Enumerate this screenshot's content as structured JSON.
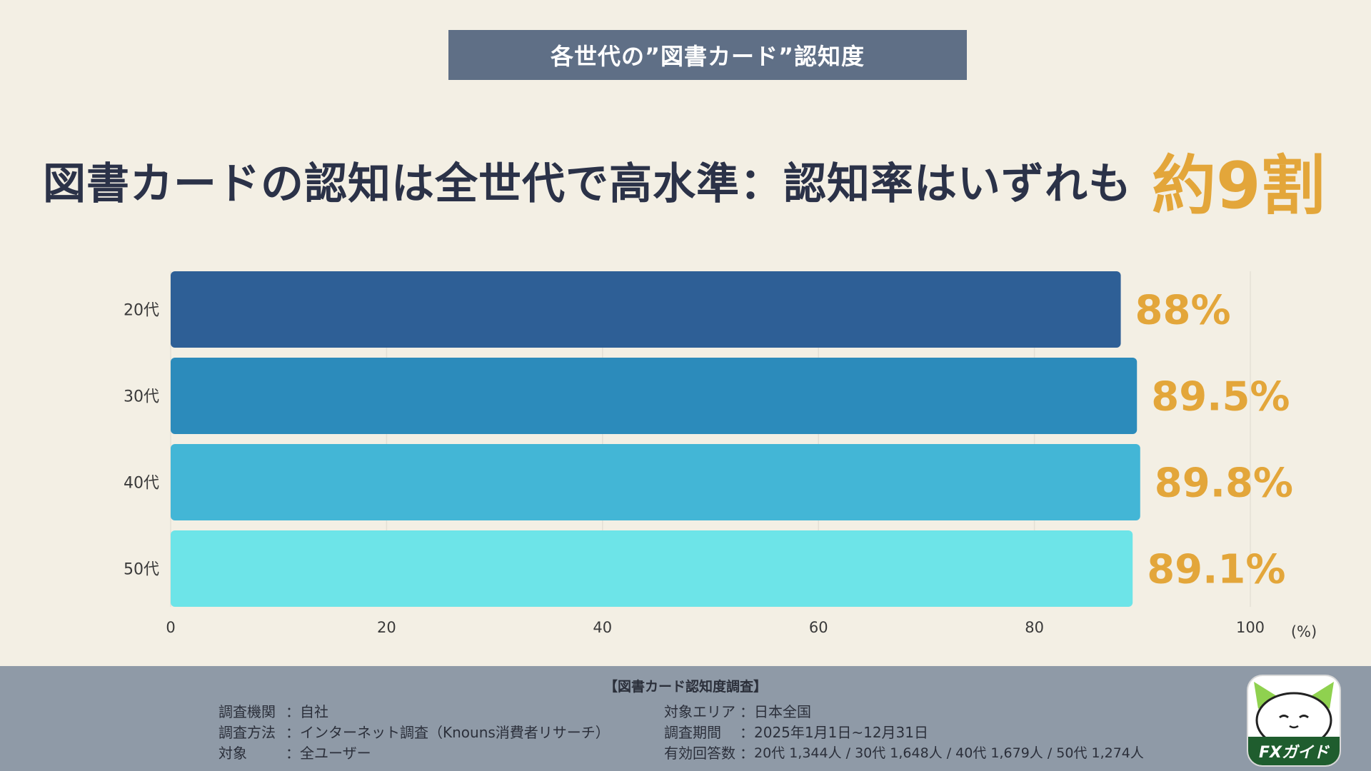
{
  "banner": {
    "title": "各世代の”図書カード”認知度"
  },
  "headline": {
    "main": "図書カードの認知は全世代で高水準：認知率はいずれも",
    "accent": "約9割"
  },
  "colors": {
    "background": "#f3efe4",
    "banner": "#5f6f86",
    "headline_text": "#2b3248",
    "accent": "#e3a63a",
    "footer": "#8f9aa7"
  },
  "chart_data": {
    "type": "bar",
    "orientation": "horizontal",
    "categories": [
      "20代",
      "30代",
      "40代",
      "50代"
    ],
    "values": [
      88,
      89.5,
      89.8,
      89.1
    ],
    "value_labels": [
      "88%",
      "89.5%",
      "89.8%",
      "89.1%"
    ],
    "bar_colors": [
      "#2e5f96",
      "#2c8bbb",
      "#43b6d6",
      "#6de4e8"
    ],
    "xlim": [
      0,
      100
    ],
    "xticks": [
      0,
      20,
      40,
      60,
      80,
      100
    ],
    "xunit": "(%)",
    "grid": true
  },
  "footer": {
    "title": "【図書カード認知度調査】",
    "left": [
      {
        "label": "調査機関",
        "sep": "：",
        "value": "自社"
      },
      {
        "label": "調査方法",
        "sep": "：",
        "value": "インターネット調査（Knouns消費者リサーチ）"
      },
      {
        "label": "対象",
        "sep": "：",
        "value": "全ユーザー"
      }
    ],
    "right": [
      {
        "label": "対象エリア",
        "sep": "：",
        "value": "日本全国"
      },
      {
        "label": "調査期間",
        "sep": "：",
        "value": "2025年1月1日~12月31日"
      },
      {
        "label": "有効回答数",
        "sep": "：",
        "value": "20代 1,344人 / 30代 1,648人 / 40代 1,679人 / 50代 1,274人"
      }
    ]
  },
  "logo": {
    "text": "FXガイド",
    "icon": "cat-mascot-icon"
  }
}
